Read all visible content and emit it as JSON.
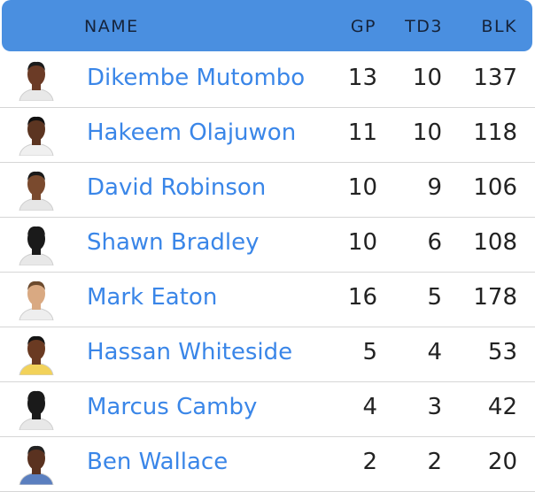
{
  "header": {
    "name": "NAME",
    "gp": "GP",
    "td3": "TD3",
    "blk": "BLK"
  },
  "colors": {
    "header_bg": "#4a8fe0",
    "link": "#3a86e8"
  },
  "players": [
    {
      "name": "Dikembe Mutombo",
      "gp": "13",
      "td3": "10",
      "blk": "137",
      "skin": "#6b3b26",
      "hair": "#1c1c1c",
      "jersey": "#e8e8e8"
    },
    {
      "name": "Hakeem Olajuwon",
      "gp": "11",
      "td3": "10",
      "blk": "118",
      "skin": "#5c3521",
      "hair": "#111111",
      "jersey": "#f0f0f0"
    },
    {
      "name": "David Robinson",
      "gp": "10",
      "td3": "9",
      "blk": "106",
      "skin": "#7a4a2e",
      "hair": "#1a1a1a",
      "jersey": "#e6e6e6"
    },
    {
      "name": "Shawn Bradley",
      "gp": "10",
      "td3": "6",
      "blk": "108",
      "skin": "#1a1a1a",
      "hair": "#1a1a1a",
      "jersey": "#e8e8e8"
    },
    {
      "name": "Mark Eaton",
      "gp": "16",
      "td3": "5",
      "blk": "178",
      "skin": "#d9a982",
      "hair": "#6b4a2e",
      "jersey": "#eeeeee"
    },
    {
      "name": "Hassan Whiteside",
      "gp": "5",
      "td3": "4",
      "blk": "53",
      "skin": "#6a3a22",
      "hair": "#151515",
      "jersey": "#f2d25a"
    },
    {
      "name": "Marcus Camby",
      "gp": "4",
      "td3": "3",
      "blk": "42",
      "skin": "#1a1a1a",
      "hair": "#1a1a1a",
      "jersey": "#e8e8e8"
    },
    {
      "name": "Ben Wallace",
      "gp": "2",
      "td3": "2",
      "blk": "20",
      "skin": "#5a3220",
      "hair": "#222222",
      "jersey": "#5b7fbf"
    }
  ]
}
